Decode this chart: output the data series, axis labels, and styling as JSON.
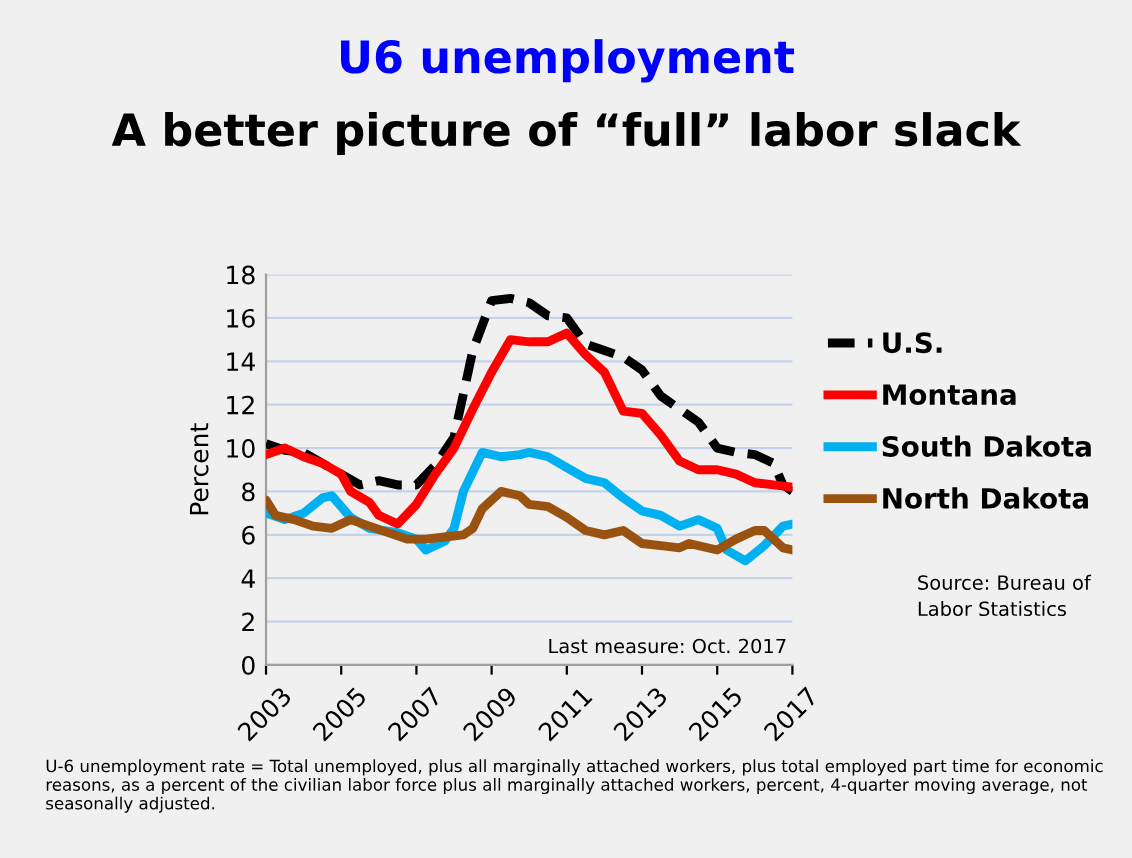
{
  "chart_data": {
    "type": "line",
    "title": "U6 unemployment",
    "subtitle": "A better picture of “full” labor slack",
    "ylabel": "Percent",
    "xlim": [
      2003,
      2017
    ],
    "xticks": [
      2003,
      2005,
      2007,
      2009,
      2011,
      2013,
      2015,
      2017
    ],
    "ylim": [
      0,
      18
    ],
    "yticks": [
      0,
      2,
      4,
      6,
      8,
      10,
      12,
      14,
      16,
      18
    ],
    "grid": "y",
    "legend": "right",
    "annotations": [
      "Last measure: Oct. 2017",
      "Source: Bureau of Labor Statistics",
      "U-6 unemployment rate = Total unemployed, plus all marginally attached workers, plus total employed part time for economic reasons, as a percent of the civilian labor force plus all marginally attached workers, percent, 4-quarter moving average, not seasonally adjusted."
    ],
    "series": [
      {
        "name": "U.S.",
        "color": "#000000",
        "line_style": "dashed",
        "x": [
          2003,
          2003.5,
          2004,
          2004.5,
          2005,
          2005.5,
          2006,
          2006.5,
          2007,
          2007.5,
          2008,
          2008.5,
          2009,
          2009.5,
          2010,
          2010.5,
          2011,
          2011.5,
          2012,
          2012.5,
          2013,
          2013.5,
          2014,
          2014.5,
          2015,
          2015.5,
          2016,
          2016.5,
          2016.75,
          2017
        ],
        "values": [
          10.2,
          9.9,
          9.8,
          9.3,
          8.8,
          8.3,
          8.5,
          8.3,
          8.3,
          9.2,
          10.5,
          14.5,
          16.8,
          16.9,
          16.7,
          16.1,
          16.0,
          14.8,
          14.5,
          14.2,
          13.6,
          12.4,
          11.8,
          11.2,
          10.0,
          9.8,
          9.7,
          9.3,
          8.3,
          8.0
        ]
      },
      {
        "name": "Montana",
        "color": "#ff0000",
        "line_style": "solid",
        "x": [
          2003,
          2003.5,
          2004,
          2004.5,
          2005,
          2005.25,
          2005.75,
          2006,
          2006.5,
          2007,
          2007.5,
          2008,
          2008.5,
          2009,
          2009.5,
          2010,
          2010.5,
          2011,
          2011.5,
          2012,
          2012.5,
          2013,
          2013.5,
          2014,
          2014.5,
          2015,
          2015.5,
          2016,
          2016.5,
          2017
        ],
        "values": [
          9.7,
          10.0,
          9.6,
          9.3,
          8.8,
          8.0,
          7.5,
          6.9,
          6.5,
          7.4,
          8.8,
          10.0,
          11.8,
          13.5,
          15.0,
          14.9,
          14.9,
          15.3,
          14.3,
          13.5,
          11.7,
          11.6,
          10.6,
          9.4,
          9.0,
          9.0,
          8.8,
          8.4,
          8.3,
          8.2
        ]
      },
      {
        "name": "South Dakota",
        "color": "#00b0f0",
        "line_style": "solid",
        "x": [
          2003,
          2003.5,
          2004,
          2004.5,
          2004.75,
          2005.25,
          2005.75,
          2006.5,
          2007,
          2007.25,
          2007.75,
          2008,
          2008.25,
          2008.75,
          2009.25,
          2009.75,
          2010,
          2010.5,
          2011,
          2011.5,
          2012,
          2012.5,
          2013,
          2013.5,
          2014,
          2014.5,
          2015,
          2015.25,
          2015.75,
          2016.25,
          2016.75,
          2017
        ],
        "values": [
          7.0,
          6.7,
          7.0,
          7.7,
          7.8,
          6.8,
          6.3,
          6.1,
          5.8,
          5.3,
          5.7,
          6.3,
          8.0,
          9.8,
          9.6,
          9.7,
          9.8,
          9.6,
          9.1,
          8.6,
          8.4,
          7.7,
          7.1,
          6.9,
          6.4,
          6.7,
          6.3,
          5.3,
          4.8,
          5.5,
          6.4,
          6.5
        ]
      },
      {
        "name": "North Dakota",
        "color": "#99520f",
        "line_style": "solid",
        "x": [
          2003,
          2003.25,
          2003.75,
          2004.25,
          2004.75,
          2005.25,
          2005.75,
          2006.25,
          2006.75,
          2007.25,
          2007.75,
          2008.25,
          2008.5,
          2008.75,
          2009.25,
          2009.75,
          2010,
          2010.5,
          2011,
          2011.5,
          2012,
          2012.5,
          2013,
          2013.5,
          2014,
          2014.25,
          2015,
          2015.5,
          2016,
          2016.25,
          2016.75,
          2017
        ],
        "values": [
          7.6,
          6.9,
          6.7,
          6.4,
          6.3,
          6.7,
          6.4,
          6.1,
          5.8,
          5.8,
          5.9,
          6.0,
          6.3,
          7.2,
          8.0,
          7.8,
          7.4,
          7.3,
          6.8,
          6.2,
          6.0,
          6.2,
          5.6,
          5.5,
          5.4,
          5.6,
          5.3,
          5.8,
          6.2,
          6.2,
          5.4,
          5.3
        ]
      }
    ]
  }
}
